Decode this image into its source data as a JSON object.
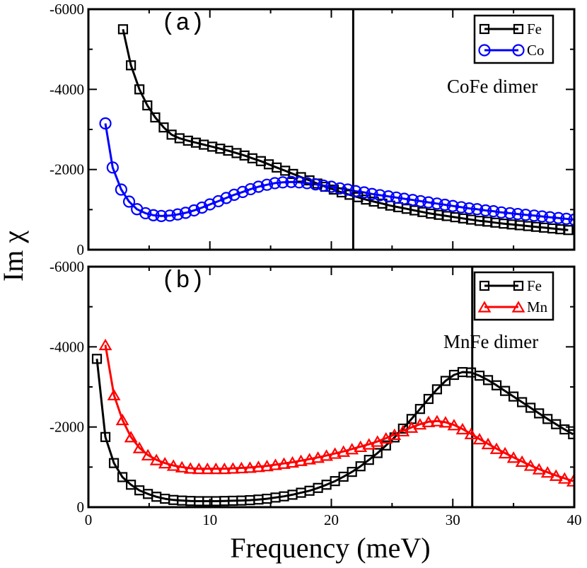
{
  "chart_data": [
    {
      "type": "line",
      "panel_label": "(a)",
      "annotation": "CoFe dimer",
      "xlabel": "Frequency (meV)",
      "ylabel": "Im χ",
      "xlim": [
        0,
        40
      ],
      "ylim": [
        0,
        -6000
      ],
      "y_ticks": [
        0,
        -2000,
        -4000,
        -6000
      ],
      "y_tick_labels": [
        "0",
        "-2000",
        "-4000",
        "-6000"
      ],
      "vline_x": 21.8,
      "legend_position": "top-right",
      "series": [
        {
          "name": "Fe",
          "color": "#000000",
          "marker": "square",
          "x": [
            2.85,
            3.5,
            4.2,
            4.85,
            5.5,
            6.2,
            6.85,
            7.5,
            8.2,
            8.85,
            9.5,
            10.2,
            10.85,
            11.5,
            12.2,
            12.85,
            13.5,
            14.2,
            14.85,
            15.5,
            16.2,
            16.85,
            17.5,
            18.2,
            18.85,
            19.5,
            20.2,
            20.85,
            21.5,
            22.2,
            22.85,
            23.5,
            24.2,
            24.85,
            25.5,
            26.2,
            26.85,
            27.5,
            28.2,
            28.85,
            29.5,
            30.2,
            30.85,
            31.5,
            32.2,
            32.85,
            33.5,
            34.2,
            34.85,
            35.5,
            36.2,
            36.85,
            37.5,
            38.2,
            38.85,
            39.5
          ],
          "y": [
            -5500,
            -4600,
            -4000,
            -3600,
            -3300,
            -3050,
            -2870,
            -2780,
            -2720,
            -2670,
            -2620,
            -2570,
            -2520,
            -2470,
            -2410,
            -2350,
            -2280,
            -2210,
            -2130,
            -2050,
            -1970,
            -1890,
            -1810,
            -1730,
            -1650,
            -1570,
            -1500,
            -1430,
            -1370,
            -1310,
            -1250,
            -1200,
            -1150,
            -1100,
            -1060,
            -1020,
            -980,
            -940,
            -900,
            -870,
            -840,
            -810,
            -780,
            -750,
            -720,
            -700,
            -675,
            -650,
            -630,
            -610,
            -590,
            -570,
            -550,
            -530,
            -510,
            -490
          ]
        },
        {
          "name": "Co",
          "color": "#0000ff",
          "marker": "circle",
          "x": [
            1.4,
            2.0,
            2.7,
            3.35,
            4.0,
            4.7,
            5.35,
            6.0,
            6.7,
            7.35,
            8.0,
            8.7,
            9.35,
            10.0,
            10.7,
            11.35,
            12.0,
            12.7,
            13.35,
            14.0,
            14.7,
            15.35,
            16.0,
            16.7,
            17.35,
            18.0,
            18.7,
            19.35,
            20.0,
            20.7,
            21.35,
            22.0,
            22.7,
            23.35,
            24.0,
            24.7,
            25.35,
            26.0,
            26.7,
            27.35,
            28.0,
            28.7,
            29.35,
            30.0,
            30.7,
            31.35,
            32.0,
            32.7,
            33.35,
            34.0,
            34.7,
            35.35,
            36.0,
            36.7,
            37.35,
            38.0,
            38.7,
            39.35,
            40.0
          ],
          "y": [
            -3150,
            -2050,
            -1500,
            -1200,
            -1010,
            -910,
            -860,
            -840,
            -850,
            -880,
            -920,
            -980,
            -1050,
            -1130,
            -1210,
            -1290,
            -1370,
            -1440,
            -1510,
            -1570,
            -1620,
            -1660,
            -1680,
            -1690,
            -1680,
            -1660,
            -1630,
            -1600,
            -1570,
            -1530,
            -1500,
            -1460,
            -1430,
            -1390,
            -1360,
            -1330,
            -1300,
            -1270,
            -1240,
            -1210,
            -1180,
            -1150,
            -1120,
            -1090,
            -1060,
            -1030,
            -1010,
            -980,
            -960,
            -930,
            -910,
            -890,
            -870,
            -850,
            -830,
            -810,
            -790,
            -770,
            -750
          ]
        }
      ]
    },
    {
      "type": "line",
      "panel_label": "(b)",
      "annotation": "MnFe dimer",
      "xlabel": "Frequency (meV)",
      "ylabel": "Im χ",
      "xlim": [
        0,
        40
      ],
      "ylim": [
        0,
        -6000
      ],
      "x_ticks": [
        0,
        10,
        20,
        30,
        40
      ],
      "x_tick_labels": [
        "0",
        "10",
        "20",
        "30",
        "40"
      ],
      "y_ticks": [
        0,
        -2000,
        -4000,
        -6000
      ],
      "y_tick_labels": [
        "0",
        "-2000",
        "-4000",
        "-6000"
      ],
      "vline_x": 31.6,
      "legend_position": "top-right",
      "series": [
        {
          "name": "Fe",
          "color": "#000000",
          "marker": "square",
          "x": [
            0.7,
            1.4,
            2.1,
            2.8,
            3.5,
            4.2,
            4.9,
            5.6,
            6.3,
            7.0,
            7.7,
            8.4,
            9.1,
            9.8,
            10.5,
            11.2,
            11.9,
            12.6,
            13.3,
            14.0,
            14.7,
            15.4,
            16.1,
            16.8,
            17.5,
            18.2,
            18.9,
            19.6,
            20.3,
            21.0,
            21.7,
            22.4,
            23.1,
            23.8,
            24.5,
            25.2,
            25.9,
            26.6,
            27.3,
            28.0,
            28.7,
            29.4,
            30.1,
            30.8,
            31.5,
            32.2,
            32.9,
            33.6,
            34.3,
            35.0,
            35.7,
            36.4,
            37.1,
            37.8,
            38.5,
            39.2,
            39.9
          ],
          "y": [
            -3700,
            -1750,
            -1100,
            -750,
            -560,
            -420,
            -330,
            -260,
            -210,
            -180,
            -165,
            -155,
            -150,
            -150,
            -150,
            -155,
            -160,
            -165,
            -175,
            -190,
            -210,
            -240,
            -270,
            -310,
            -360,
            -410,
            -480,
            -560,
            -650,
            -760,
            -880,
            -1020,
            -1180,
            -1350,
            -1540,
            -1740,
            -1960,
            -2200,
            -2450,
            -2700,
            -2940,
            -3150,
            -3300,
            -3370,
            -3360,
            -3280,
            -3170,
            -3040,
            -2900,
            -2760,
            -2620,
            -2480,
            -2340,
            -2200,
            -2070,
            -1940,
            -1820
          ]
        },
        {
          "name": "Mn",
          "color": "#ff0000",
          "marker": "triangle",
          "x": [
            1.4,
            2.1,
            2.8,
            3.5,
            4.2,
            4.9,
            5.6,
            6.3,
            7.0,
            7.7,
            8.4,
            9.1,
            9.8,
            10.5,
            11.2,
            11.9,
            12.6,
            13.3,
            14.0,
            14.7,
            15.4,
            16.1,
            16.8,
            17.5,
            18.2,
            18.9,
            19.6,
            20.3,
            21.0,
            21.7,
            22.4,
            23.1,
            23.8,
            24.5,
            25.2,
            25.9,
            26.6,
            27.3,
            28.0,
            28.7,
            29.4,
            30.1,
            30.8,
            31.5,
            32.2,
            32.9,
            33.6,
            34.3,
            35.0,
            35.7,
            36.4,
            37.1,
            37.8,
            38.5,
            39.2,
            39.9
          ],
          "y": [
            -4050,
            -2800,
            -2180,
            -1750,
            -1480,
            -1300,
            -1180,
            -1100,
            -1040,
            -1000,
            -970,
            -960,
            -960,
            -960,
            -960,
            -970,
            -980,
            -990,
            -1010,
            -1030,
            -1060,
            -1090,
            -1120,
            -1160,
            -1200,
            -1240,
            -1290,
            -1340,
            -1390,
            -1450,
            -1510,
            -1570,
            -1640,
            -1720,
            -1810,
            -1900,
            -1990,
            -2070,
            -2130,
            -2150,
            -2120,
            -2050,
            -1950,
            -1830,
            -1700,
            -1580,
            -1460,
            -1350,
            -1240,
            -1140,
            -1040,
            -950,
            -870,
            -790,
            -720,
            -650
          ]
        }
      ]
    }
  ]
}
